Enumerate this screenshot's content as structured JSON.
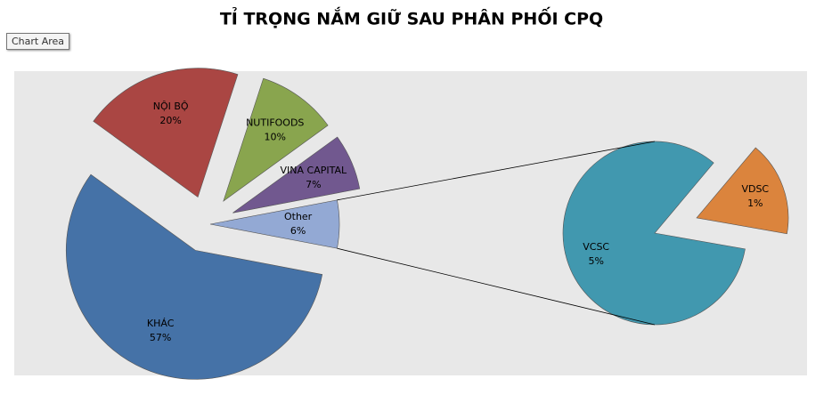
{
  "tooltip": "Chart Area",
  "chart_data": {
    "type": "pie-of-pie",
    "title": "TỈ TRỌNG NẮM GIỮ SAU PHÂN PHỐI CPQ",
    "categories": [
      "KHÁC",
      "NỘI BỘ",
      "NUTIFOODS",
      "VINA CAPITAL",
      "Other"
    ],
    "values": [
      57,
      20,
      10,
      7,
      6
    ],
    "value_labels": [
      "57%",
      "20%",
      "10%",
      "7%",
      "6%"
    ],
    "colors": [
      "#4572a7",
      "#aa4643",
      "#89a54e",
      "#71588f",
      "#93a9d4"
    ],
    "secondary": {
      "categories": [
        "VCSC",
        "VDSC"
      ],
      "values": [
        5,
        1
      ],
      "value_labels": [
        "5%",
        "1%"
      ],
      "colors": [
        "#4198af",
        "#db843d"
      ]
    }
  }
}
